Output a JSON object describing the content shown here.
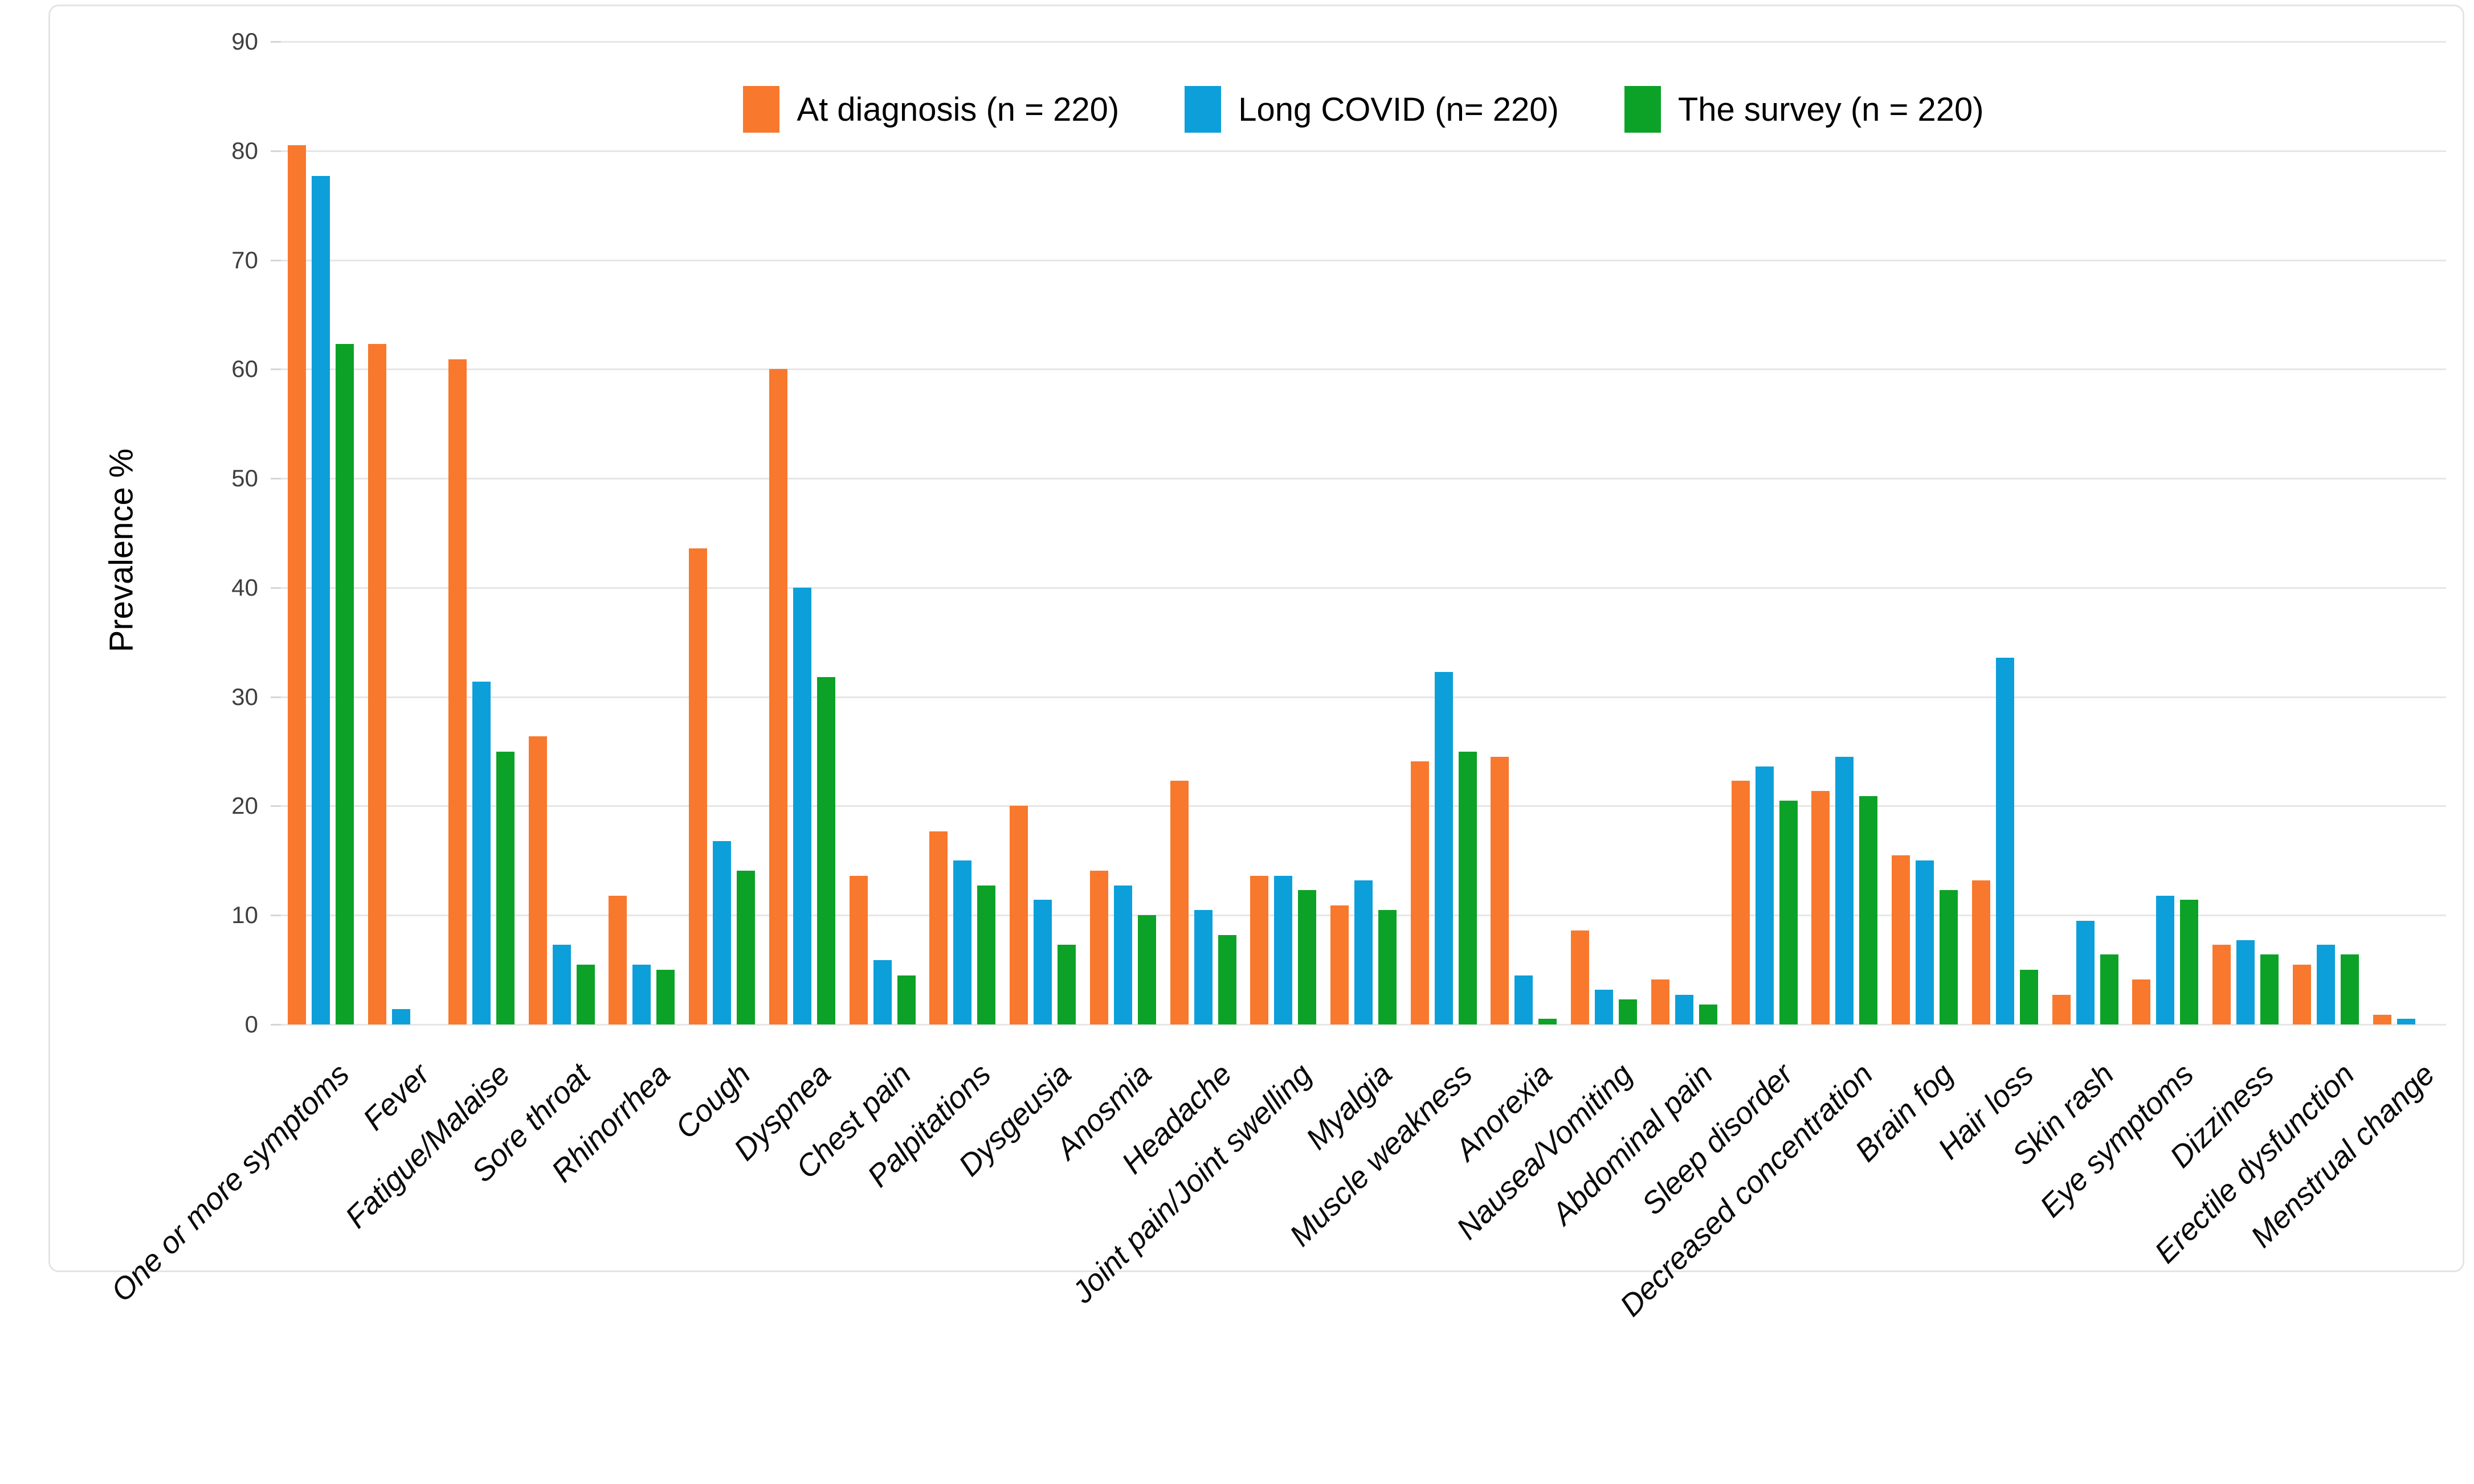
{
  "figure": {
    "y_axis_title": "Prevalence %"
  },
  "chart_data": {
    "type": "bar",
    "title": "",
    "xlabel": "",
    "ylabel": "Prevalence %",
    "ylim": [
      0,
      90
    ],
    "ytick_step": 10,
    "yticks": [
      0,
      10,
      20,
      30,
      40,
      50,
      60,
      70,
      80,
      90
    ],
    "grid": true,
    "legend_position": "top-center",
    "gridline_color": "#e6e6e6",
    "categories": [
      "One or more symptoms",
      "Fever",
      "Fatigue/Malaise",
      "Sore throat",
      "Rhinorrhea",
      "Cough",
      "Dyspnea",
      "Chest pain",
      "Palpitations",
      "Dysgeusia",
      "Anosmia",
      "Headache",
      "Joint pain/Joint swelling",
      "Myalgia",
      "Muscle weakness",
      "Anorexia",
      "Nausea/Vomiting",
      "Abdominal pain",
      "Sleep disorder",
      "Decreased concentration",
      "Brain fog",
      "Hair loss",
      "Skin rash",
      "Eye symptoms",
      "Dizziness",
      "Erectile dysfunction",
      "Menstrual change"
    ],
    "series": [
      {
        "name": "At diagnosis (n = 220)",
        "color": "#F8782D",
        "values": [
          80.5,
          62.3,
          60.9,
          26.4,
          11.8,
          43.6,
          60.0,
          13.6,
          17.7,
          20.0,
          14.1,
          22.3,
          13.6,
          10.9,
          24.1,
          24.5,
          8.6,
          4.1,
          22.3,
          21.4,
          15.5,
          13.2,
          2.7,
          4.1,
          7.3,
          5.5,
          0.9
        ]
      },
      {
        "name": "Long COVID (n= 220)",
        "color": "#0D9FD9",
        "values": [
          77.7,
          1.4,
          31.4,
          7.3,
          5.5,
          16.8,
          40.0,
          5.9,
          15.0,
          11.4,
          12.7,
          10.5,
          13.6,
          13.2,
          32.3,
          4.5,
          3.2,
          2.7,
          23.6,
          24.5,
          15.0,
          33.6,
          9.5,
          11.8,
          7.7,
          7.3,
          0.5
        ]
      },
      {
        "name": "The survey (n = 220)",
        "color": "#0CA228",
        "values": [
          62.3,
          0,
          25.0,
          5.5,
          5.0,
          14.1,
          31.8,
          4.5,
          12.7,
          7.3,
          10.0,
          8.2,
          12.3,
          10.5,
          25.0,
          0.5,
          2.3,
          1.8,
          20.5,
          20.9,
          12.3,
          5.0,
          6.4,
          11.4,
          6.4,
          6.4,
          0
        ]
      }
    ]
  }
}
